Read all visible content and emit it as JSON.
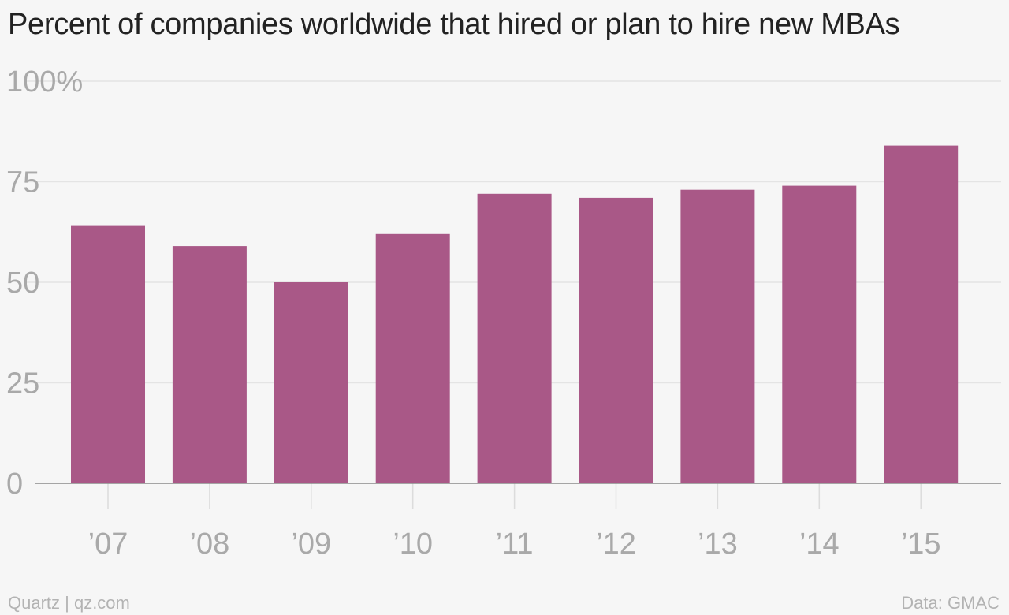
{
  "chart_data": {
    "type": "bar",
    "title": "Percent of companies worldwide that hired or plan to hire new MBAs",
    "categories": [
      "’07",
      "’08",
      "’09",
      "’10",
      "’11",
      "’12",
      "’13",
      "’14",
      "’15"
    ],
    "values": [
      64,
      59,
      50,
      62,
      72,
      71,
      73,
      74,
      84
    ],
    "ylim": [
      0,
      100
    ],
    "yticks": [
      0,
      25,
      50,
      75,
      100
    ],
    "ytick_labels": [
      "0",
      "25",
      "50",
      "75",
      "100%"
    ],
    "xlabel": "",
    "ylabel": "",
    "grid": true,
    "bar_color": "#a95887"
  },
  "footer": {
    "source_left": "Quartz | qz.com",
    "source_right": "Data: GMAC"
  }
}
